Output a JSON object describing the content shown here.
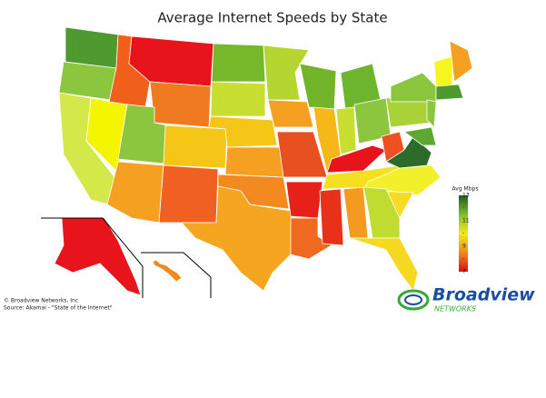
{
  "map": {
    "title": "Average Internet Speeds by State",
    "credit": "© Broadview Networks, Inc",
    "source": "Source: Akamai - \"State of the Internet\"",
    "logo": {
      "name": "Broadview",
      "sub": "NETWORKS"
    },
    "legend": {
      "title": "Avg Mbps",
      "range": [
        7,
        13
      ],
      "ticks": [
        13,
        {
          "value": 12,
          "label": "-"
        },
        11,
        {
          "value": 10,
          "label": "-"
        },
        9,
        {
          "value": 8,
          "label": "-"
        },
        7
      ],
      "colors": [
        "#1f5a1f",
        "#7cbf2c",
        "#f0ea20",
        "#f08a1a",
        "#d8140f"
      ]
    },
    "regions": [
      {
        "color": "#4e9a2e"
      },
      {
        "color": "#8cc63f"
      },
      {
        "color": "#d4e84a"
      },
      {
        "color": "#f5f500"
      },
      {
        "color": "#f0601a"
      },
      {
        "color": "#e8141b"
      },
      {
        "color": "#f07a20"
      },
      {
        "color": "#8cc63f"
      },
      {
        "color": "#f5a020"
      },
      {
        "color": "#f5c518"
      },
      {
        "color": "#f06020"
      },
      {
        "color": "#76b82a"
      },
      {
        "color": "#c8de30"
      },
      {
        "color": "#f5c518"
      },
      {
        "color": "#f5a020"
      },
      {
        "color": "#f28a20"
      },
      {
        "color": "#f5a520"
      },
      {
        "color": "#b5d630"
      },
      {
        "color": "#f5a020"
      },
      {
        "color": "#e85020"
      },
      {
        "color": "#e8201a"
      },
      {
        "color": "#ef6a20"
      },
      {
        "color": "#72b52a"
      },
      {
        "color": "#f5b818"
      },
      {
        "color": "#e8301a"
      },
      {
        "color": "#f59a20"
      },
      {
        "color": "#6db52d"
      },
      {
        "color": "#c8de30"
      },
      {
        "color": "#8cc63f"
      },
      {
        "color": "#e8141b"
      },
      {
        "color": "#f5e020"
      },
      {
        "color": "#f05020"
      },
      {
        "color": "#2d6b2a"
      },
      {
        "color": "#f2f02a"
      },
      {
        "color": "#f5dc20"
      },
      {
        "color": "#c0dc30"
      },
      {
        "color": "#f5d820"
      },
      {
        "color": "#a8d238"
      },
      {
        "color": "#8cc63f"
      },
      {
        "color": "#f5f520"
      },
      {
        "color": "#f5a020"
      },
      {
        "color": "#4e9a2e"
      },
      {
        "color": "#8cc63f"
      },
      {
        "color": "#5fa830"
      },
      {
        "color": "#e8141b"
      },
      {
        "color": "#f08a1a"
      }
    ]
  }
}
